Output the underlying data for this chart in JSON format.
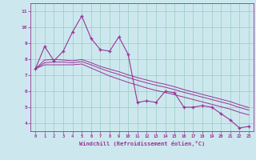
{
  "xlabel": "Windchill (Refroidissement éolien,°C)",
  "x_values": [
    0,
    1,
    2,
    3,
    4,
    5,
    6,
    7,
    8,
    9,
    10,
    11,
    12,
    13,
    14,
    15,
    16,
    17,
    18,
    19,
    20,
    21,
    22,
    23
  ],
  "y_main": [
    7.4,
    8.8,
    7.9,
    8.5,
    9.7,
    10.7,
    9.3,
    8.6,
    8.5,
    9.4,
    8.3,
    5.3,
    5.4,
    5.3,
    6.0,
    5.9,
    5.0,
    5.0,
    5.1,
    5.0,
    4.6,
    4.2,
    3.7,
    3.8
  ],
  "y_line1": [
    7.4,
    7.65,
    7.65,
    7.65,
    7.65,
    7.7,
    7.45,
    7.2,
    6.95,
    6.75,
    6.55,
    6.38,
    6.2,
    6.05,
    5.92,
    5.78,
    5.63,
    5.48,
    5.33,
    5.18,
    5.03,
    4.88,
    4.68,
    4.52
  ],
  "y_line2": [
    7.4,
    7.78,
    7.82,
    7.82,
    7.78,
    7.85,
    7.65,
    7.42,
    7.22,
    7.05,
    6.85,
    6.68,
    6.52,
    6.37,
    6.25,
    6.1,
    5.93,
    5.78,
    5.63,
    5.48,
    5.33,
    5.18,
    4.98,
    4.82
  ],
  "y_line3": [
    7.4,
    7.95,
    7.98,
    7.95,
    7.9,
    7.98,
    7.78,
    7.55,
    7.38,
    7.22,
    7.02,
    6.85,
    6.7,
    6.55,
    6.43,
    6.28,
    6.1,
    5.95,
    5.8,
    5.65,
    5.5,
    5.35,
    5.15,
    4.98
  ],
  "bg_color": "#cce8ee",
  "line_color": "#993399",
  "grid_color": "#99ccbb",
  "ylim": [
    3.5,
    11.5
  ],
  "xlim": [
    -0.5,
    23.5
  ],
  "yticks": [
    4,
    5,
    6,
    7,
    8,
    9,
    10,
    11
  ],
  "xticks": [
    0,
    1,
    2,
    3,
    4,
    5,
    6,
    7,
    8,
    9,
    10,
    11,
    12,
    13,
    14,
    15,
    16,
    17,
    18,
    19,
    20,
    21,
    22,
    23
  ]
}
